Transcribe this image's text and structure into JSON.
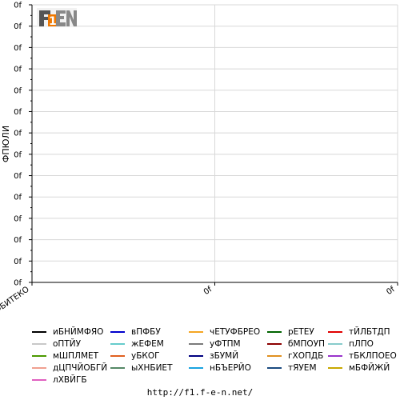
{
  "chart_data": {
    "type": "line",
    "title": "",
    "xlabel": "",
    "ylabel": "ФПЮЛИ",
    "y_tick_labels": [
      "0f",
      "0f",
      "0f",
      "0f",
      "0f",
      "0f",
      "0f",
      "0f",
      "0f",
      "0f",
      "0f",
      "0f",
      "0f",
      "0f"
    ],
    "x_tick_labels": [
      "ФБИТЕКО",
      "0f",
      "0f"
    ],
    "grid": true,
    "legend_placement": "bottom",
    "series": [
      {
        "name": "иБНЙМФЯО",
        "color": "#000000",
        "values": []
      },
      {
        "name": "вПФБУ",
        "color": "#0000cc",
        "values": []
      },
      {
        "name": "чЕТУФБРЕО",
        "color": "#f5a623",
        "values": []
      },
      {
        "name": "рЕТЕУ",
        "color": "#006400",
        "values": []
      },
      {
        "name": "тЙЛБТДП",
        "color": "#e00000",
        "values": []
      },
      {
        "name": "оПТЙУ",
        "color": "#c8c8c8",
        "values": []
      },
      {
        "name": "жЕФЕМ",
        "color": "#66cccc",
        "values": []
      },
      {
        "name": "уФТПМ",
        "color": "#7a7a7a",
        "values": []
      },
      {
        "name": "бМПОУП",
        "color": "#8b0000",
        "values": []
      },
      {
        "name": "пЛПО",
        "color": "#88cccc",
        "values": []
      },
      {
        "name": "мШПЛМЕТ",
        "color": "#4c9900",
        "values": []
      },
      {
        "name": "уБКОГ",
        "color": "#e06020",
        "values": []
      },
      {
        "name": "зБУМЙ",
        "color": "#000080",
        "values": []
      },
      {
        "name": "гХОПДБ",
        "color": "#e09020",
        "values": []
      },
      {
        "name": "тБКЛПОЕО",
        "color": "#9933cc",
        "values": []
      },
      {
        "name": "дЦПЧЙОБГЙ",
        "color": "#f0a090",
        "values": []
      },
      {
        "name": "ыХНБИЕТ",
        "color": "#558866",
        "values": []
      },
      {
        "name": "нБЪЕРЙО",
        "color": "#1aa3e0",
        "values": []
      },
      {
        "name": "тЯУЕМ",
        "color": "#1a4a80",
        "values": []
      },
      {
        "name": "мБФЙЖЙ",
        "color": "#c8a800",
        "values": []
      },
      {
        "name": "лХВЙГБ",
        "color": "#e060c0",
        "values": []
      }
    ]
  },
  "logo": {
    "text": "F1EN"
  },
  "footer": {
    "url": "http://f1.f-e-n.net/"
  }
}
